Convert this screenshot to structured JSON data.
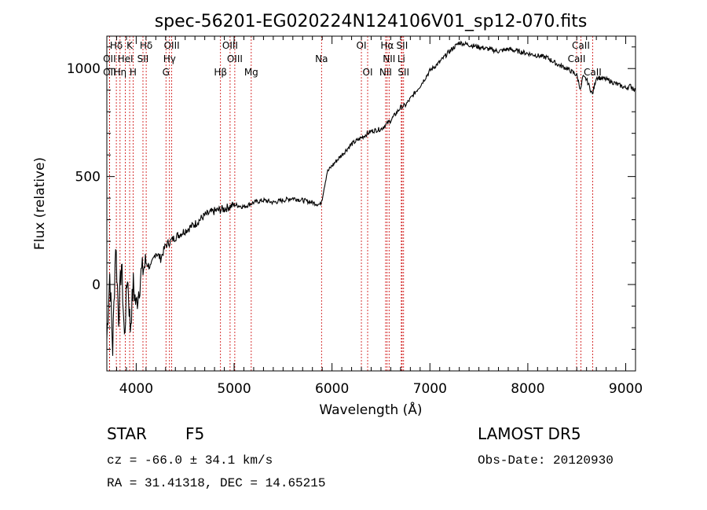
{
  "chart_data": {
    "type": "line",
    "title": "spec-56201-EG020224N124106V01_sp12-070.fits",
    "xlabel": "Wavelength (Å)",
    "ylabel": "Flux (relative)",
    "xlim": [
      3700,
      9100
    ],
    "ylim": [
      -400,
      1150
    ],
    "x_ticks": [
      4000,
      5000,
      6000,
      7000,
      8000,
      9000
    ],
    "y_ticks": [
      0,
      500,
      1000
    ],
    "grid": false,
    "line_color": "#000000",
    "marker_color": "#cc0000",
    "series": [
      {
        "x": [
          3700,
          3730,
          3760,
          3790,
          3820,
          3850,
          3880,
          3910,
          3940,
          3970,
          4000,
          4050,
          4100,
          4150,
          4200,
          4250,
          4300,
          4350,
          4400,
          4500,
          4600,
          4700,
          4800,
          4900,
          5000,
          5100,
          5200,
          5300,
          5400,
          5500,
          5600,
          5700,
          5800,
          5880,
          5900,
          5920,
          5950,
          6000,
          6100,
          6200,
          6300,
          6400,
          6500,
          6600,
          6700,
          6750,
          6800,
          6900,
          7000,
          7100,
          7200,
          7300,
          7400,
          7500,
          7600,
          7700,
          7800,
          7900,
          8000,
          8100,
          8200,
          8300,
          8400,
          8500,
          8540,
          8560,
          8600,
          8660,
          8700,
          8800,
          8900,
          9000,
          9050,
          9100
        ],
        "y": [
          -250,
          50,
          -300,
          200,
          -150,
          100,
          -250,
          50,
          -200,
          0,
          -100,
          50,
          100,
          80,
          150,
          120,
          180,
          200,
          220,
          250,
          280,
          320,
          340,
          350,
          370,
          360,
          380,
          390,
          380,
          390,
          400,
          390,
          380,
          370,
          400,
          450,
          520,
          550,
          600,
          650,
          680,
          710,
          720,
          760,
          820,
          830,
          860,
          920,
          990,
          1030,
          1080,
          1120,
          1110,
          1100,
          1090,
          1080,
          1090,
          1080,
          1070,
          1060,
          1050,
          1020,
          1000,
          970,
          900,
          960,
          950,
          880,
          960,
          950,
          930,
          910,
          920,
          900
        ]
      }
    ],
    "spectral_lines": [
      {
        "label": "Hδ",
        "x": 3797,
        "row": 1
      },
      {
        "label": "K",
        "x": 3933,
        "row": 1
      },
      {
        "label": "Hδ",
        "x": 4102,
        "row": 1
      },
      {
        "label": "OIII",
        "x": 4363,
        "row": 1
      },
      {
        "label": "OIII",
        "x": 4959,
        "row": 1
      },
      {
        "label": "OI",
        "x": 6300,
        "row": 1
      },
      {
        "label": "Hα",
        "x": 6563,
        "row": 1
      },
      {
        "label": "SII",
        "x": 6716,
        "row": 1
      },
      {
        "label": "CaII",
        "x": 8542,
        "row": 1
      },
      {
        "label": "OII",
        "x": 3727,
        "row": 2
      },
      {
        "label": "HeI",
        "x": 3889,
        "row": 2
      },
      {
        "label": "SII",
        "x": 4069,
        "row": 2
      },
      {
        "label": "Hγ",
        "x": 4340,
        "row": 2
      },
      {
        "label": "OIII",
        "x": 5007,
        "row": 2
      },
      {
        "label": "Na",
        "x": 5893,
        "row": 2
      },
      {
        "label": "NII",
        "x": 6583,
        "row": 2
      },
      {
        "label": "Li",
        "x": 6708,
        "row": 2
      },
      {
        "label": "CaII",
        "x": 8498,
        "row": 2
      },
      {
        "label": "OII",
        "x": 3727,
        "row": 3
      },
      {
        "label": "Hη",
        "x": 3835,
        "row": 3
      },
      {
        "label": "H",
        "x": 3968,
        "row": 3
      },
      {
        "label": "G",
        "x": 4304,
        "row": 3
      },
      {
        "label": "Hβ",
        "x": 4861,
        "row": 3
      },
      {
        "label": "Mg",
        "x": 5175,
        "row": 3
      },
      {
        "label": "OI",
        "x": 6364,
        "row": 3
      },
      {
        "label": "NII",
        "x": 6548,
        "row": 3
      },
      {
        "label": "SII",
        "x": 6731,
        "row": 3
      },
      {
        "label": "CaII",
        "x": 8662,
        "row": 3
      }
    ]
  },
  "info": {
    "class": "STAR",
    "subclass": "F5",
    "survey": "LAMOST DR5",
    "cz": "cz = -66.0 ± 34.1 km/s",
    "obs_date": "Obs-Date: 20120930",
    "coords": "RA =  31.41318, DEC =  14.65215"
  }
}
